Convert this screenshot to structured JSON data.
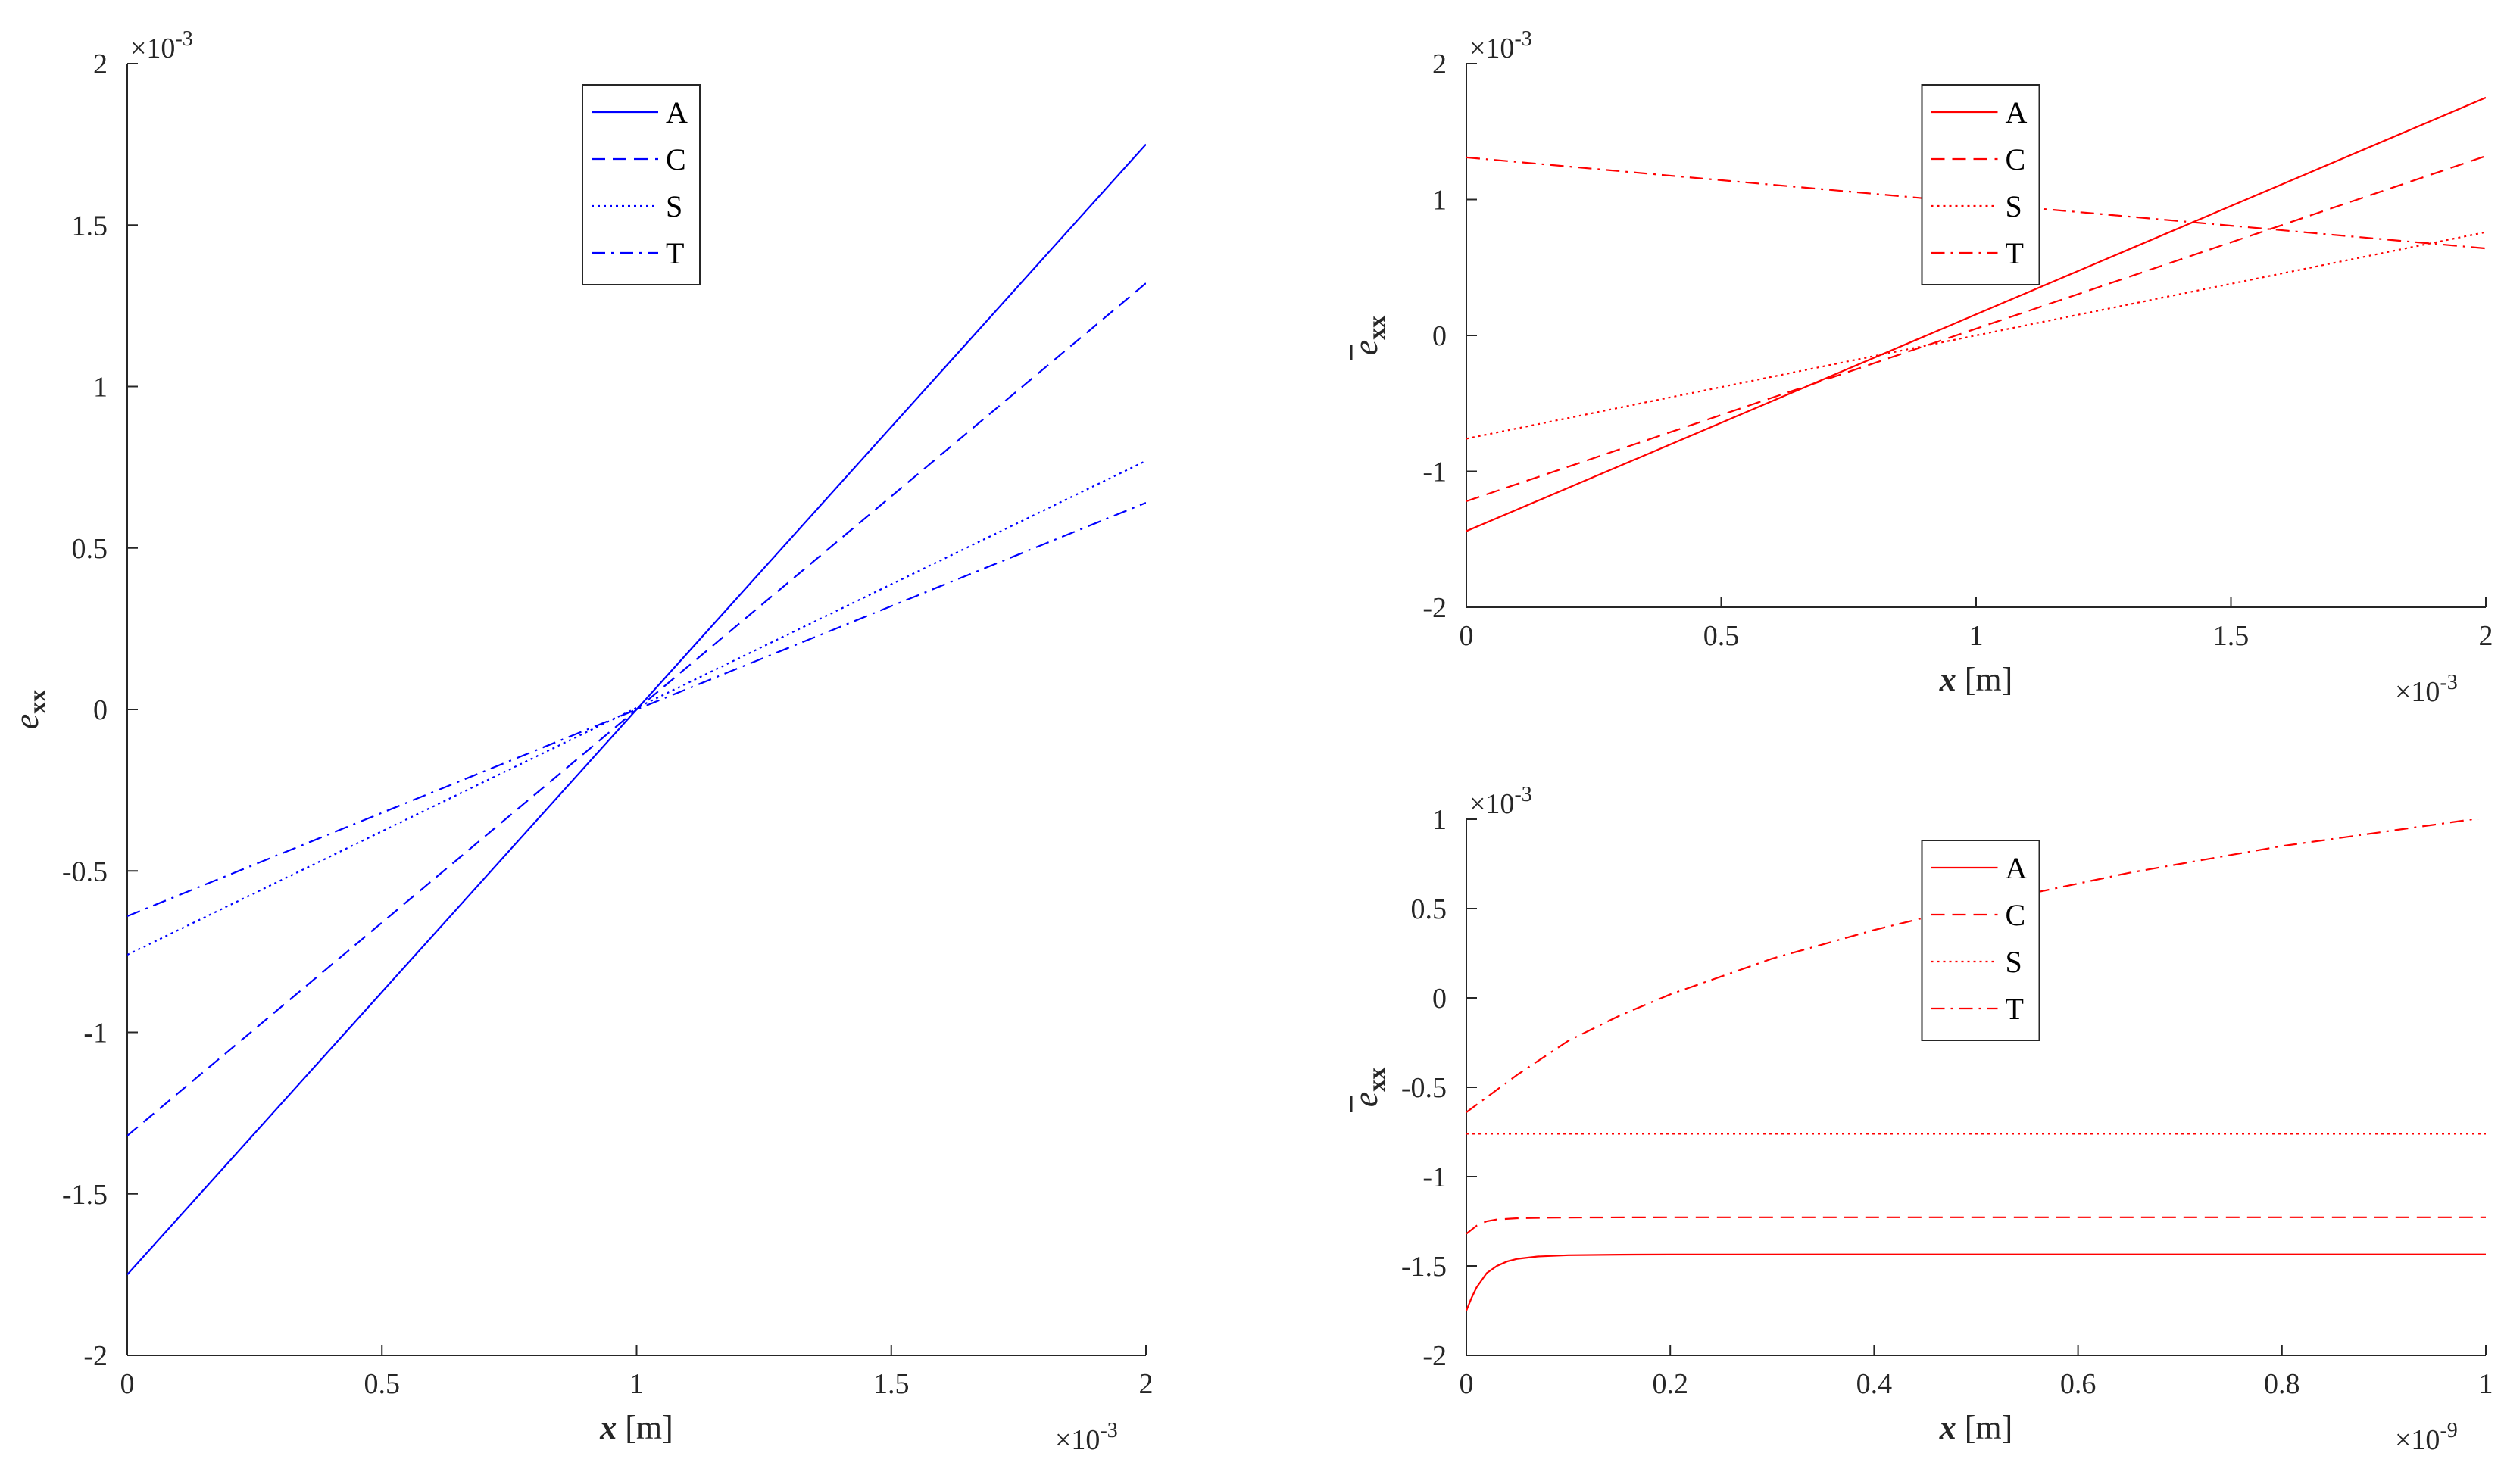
{
  "chart_data": [
    {
      "id": "left",
      "type": "line",
      "color": "#0000ff",
      "xlabel": "x [m]",
      "xlabel_var": "x",
      "xlabel_unit": "[m]",
      "ylabel_base": "e",
      "ylabel_sub": "xx",
      "ylabel_bar": false,
      "x_multiplier": "×10",
      "x_exponent": "-3",
      "y_multiplier": "×10",
      "y_exponent": "-3",
      "xlim": [
        0,
        2
      ],
      "ylim": [
        -2,
        2
      ],
      "xticks": [
        0,
        0.5,
        1,
        1.5,
        2
      ],
      "xtick_labels": [
        "0",
        "0.5",
        "1",
        "1.5",
        "2"
      ],
      "yticks": [
        -2,
        -1.5,
        -1,
        -0.5,
        0,
        0.5,
        1,
        1.5,
        2
      ],
      "ytick_labels": [
        "-2",
        "-1.5",
        "-1",
        "-0.5",
        "0",
        "0.5",
        "1",
        "1.5",
        "2"
      ],
      "grid": false,
      "legend": "top-center",
      "series": [
        {
          "name": "A",
          "style": "solid",
          "x": [
            0,
            2
          ],
          "y": [
            -1.75,
            1.75
          ]
        },
        {
          "name": "C",
          "style": "dashed",
          "x": [
            0,
            2
          ],
          "y": [
            -1.32,
            1.32
          ]
        },
        {
          "name": "S",
          "style": "dotted",
          "x": [
            0,
            2
          ],
          "y": [
            -0.76,
            0.77
          ]
        },
        {
          "name": "T",
          "style": "dashdot",
          "x": [
            0,
            2
          ],
          "y": [
            -0.64,
            0.64
          ]
        }
      ]
    },
    {
      "id": "top-right",
      "type": "line",
      "color": "#ff0000",
      "xlabel": "x [m]",
      "xlabel_var": "x",
      "xlabel_unit": "[m]",
      "ylabel_base": "e",
      "ylabel_sub": "xx",
      "ylabel_bar": true,
      "x_multiplier": "×10",
      "x_exponent": "-3",
      "y_multiplier": "×10",
      "y_exponent": "-3",
      "xlim": [
        0,
        2
      ],
      "ylim": [
        -2,
        2
      ],
      "xticks": [
        0,
        0.5,
        1,
        1.5,
        2
      ],
      "xtick_labels": [
        "0",
        "0.5",
        "1",
        "1.5",
        "2"
      ],
      "yticks": [
        -2,
        -1,
        0,
        1,
        2
      ],
      "ytick_labels": [
        "-2",
        "-1",
        "0",
        "1",
        "2"
      ],
      "grid": false,
      "legend": "top-center",
      "series": [
        {
          "name": "A",
          "style": "solid",
          "x": [
            0,
            2
          ],
          "y": [
            -1.44,
            1.75
          ]
        },
        {
          "name": "C",
          "style": "dashed",
          "x": [
            0,
            2
          ],
          "y": [
            -1.22,
            1.32
          ]
        },
        {
          "name": "S",
          "style": "dotted",
          "x": [
            0,
            2
          ],
          "y": [
            -0.76,
            0.76
          ]
        },
        {
          "name": "T",
          "style": "dashdot",
          "x": [
            0,
            2
          ],
          "y": [
            1.31,
            0.64
          ]
        }
      ]
    },
    {
      "id": "bottom-right",
      "type": "line",
      "color": "#ff0000",
      "xlabel": "x [m]",
      "xlabel_var": "x",
      "xlabel_unit": "[m]",
      "ylabel_base": "e",
      "ylabel_sub": "xx",
      "ylabel_bar": true,
      "x_multiplier": "×10",
      "x_exponent": "-9",
      "y_multiplier": "×10",
      "y_exponent": "-3",
      "xlim": [
        0,
        1
      ],
      "ylim": [
        -2,
        1
      ],
      "xticks": [
        0,
        0.2,
        0.4,
        0.6,
        0.8,
        1
      ],
      "xtick_labels": [
        "0",
        "0.2",
        "0.4",
        "0.6",
        "0.8",
        "1"
      ],
      "yticks": [
        -2,
        -1.5,
        -1,
        -0.5,
        0,
        0.5,
        1
      ],
      "ytick_labels": [
        "-2",
        "-1.5",
        "-1",
        "-0.5",
        "0",
        "0.5",
        "1"
      ],
      "grid": false,
      "legend": "top-center",
      "series": [
        {
          "name": "A",
          "style": "solid",
          "x": [
            0,
            0.005,
            0.01,
            0.02,
            0.03,
            0.04,
            0.05,
            0.07,
            0.1,
            0.15,
            0.2,
            0.4,
            0.6,
            0.8,
            1
          ],
          "y": [
            -1.75,
            -1.68,
            -1.62,
            -1.54,
            -1.5,
            -1.475,
            -1.46,
            -1.447,
            -1.44,
            -1.437,
            -1.436,
            -1.435,
            -1.435,
            -1.435,
            -1.435
          ]
        },
        {
          "name": "C",
          "style": "dashed",
          "x": [
            0,
            0.01,
            0.02,
            0.03,
            0.05,
            0.08,
            0.12,
            0.2,
            0.4,
            0.6,
            0.8,
            1
          ],
          "y": [
            -1.32,
            -1.275,
            -1.25,
            -1.24,
            -1.233,
            -1.23,
            -1.229,
            -1.228,
            -1.228,
            -1.228,
            -1.228,
            -1.228
          ]
        },
        {
          "name": "S",
          "style": "dotted",
          "x": [
            0,
            1
          ],
          "y": [
            -0.76,
            -0.76
          ]
        },
        {
          "name": "T",
          "style": "dashdot",
          "x": [
            0,
            0.05,
            0.1,
            0.15,
            0.2,
            0.25,
            0.3,
            0.35,
            0.4,
            0.45,
            0.5,
            0.55,
            0.6,
            0.65,
            0.7,
            0.75,
            0.8,
            0.85,
            0.9,
            0.95,
            1
          ],
          "y": [
            -0.64,
            -0.43,
            -0.24,
            -0.1,
            0.02,
            0.12,
            0.22,
            0.3,
            0.38,
            0.45,
            0.52,
            0.58,
            0.64,
            0.7,
            0.75,
            0.8,
            0.85,
            0.89,
            0.93,
            0.97,
            1.01
          ]
        }
      ]
    }
  ]
}
